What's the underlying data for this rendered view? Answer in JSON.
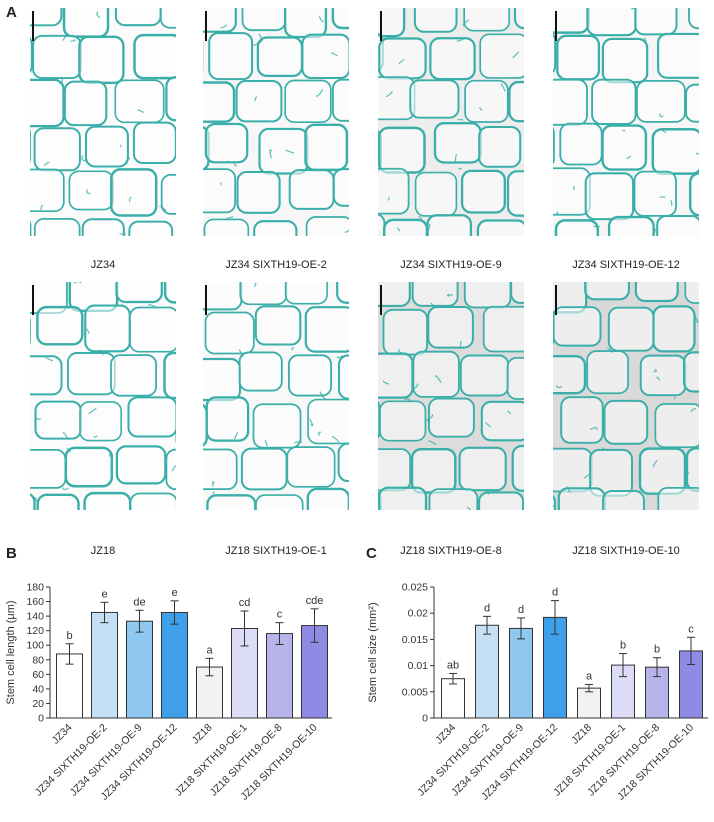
{
  "panels": {
    "a": "A",
    "b": "B",
    "c": "C"
  },
  "micrographs": [
    {
      "caption": "JZ34",
      "bg": "#fbfbfb"
    },
    {
      "caption": "JZ34 SIXTH19-OE-2",
      "bg": "#f7f7f7"
    },
    {
      "caption": "JZ34 SIXTH19-OE-9",
      "bg": "#ededed"
    },
    {
      "caption": "JZ34 SIXTH19-OE-12",
      "bg": "#f6f6f6"
    },
    {
      "caption": "JZ18",
      "bg": "#fbfbfb"
    },
    {
      "caption": "JZ18 SIXTH19-OE-1",
      "bg": "#f8f8f8"
    },
    {
      "caption": "JZ18 SIXTH19-OE-8",
      "bg": "#dcdcdc"
    },
    {
      "caption": "JZ18 SIXTH19-OE-10",
      "bg": "#d9d9d9"
    }
  ],
  "stain_color": "#3aaea8",
  "chart_data": [
    {
      "type": "bar",
      "ylabel": "Stem cell length (μm)",
      "ylim": [
        0,
        180
      ],
      "yticks": [
        0,
        20,
        40,
        60,
        80,
        100,
        120,
        140,
        160,
        180
      ],
      "categories": [
        "JZ34",
        "JZ34 SIXTH19-OE-2",
        "JZ34 SIXTH19-OE-9",
        "JZ34 SIXTH19-OE-12",
        "JZ18",
        "JZ18 SIXTH19-OE-1",
        "JZ18 SIXTH19-OE-8",
        "JZ18 SIXTH19-OE-10"
      ],
      "values": [
        88,
        145,
        133,
        145,
        70,
        123,
        116,
        127
      ],
      "errors": [
        14,
        14,
        15,
        16,
        12,
        24,
        15,
        23
      ],
      "letters": [
        "b",
        "e",
        "de",
        "e",
        "a",
        "cd",
        "c",
        "cde"
      ],
      "colors": [
        "#ffffff",
        "#c5dff4",
        "#8ec8ee",
        "#3da0e8",
        "#f2f2f2",
        "#dcdcf6",
        "#b7b4ec",
        "#8f8ae4"
      ]
    },
    {
      "type": "bar",
      "ylabel": "Stem cell size (mm²)",
      "ylim": [
        0,
        0.025
      ],
      "yticks": [
        "0",
        "0.005",
        "0.01",
        "0.015",
        "0.02",
        "0.025"
      ],
      "categories": [
        "JZ34",
        "JZ34 SIXTH19-OE-2",
        "JZ34 SIXTH19-OE-9",
        "JZ34 SIXTH19-OE-12",
        "JZ18",
        "JZ18 SIXTH19-OE-1",
        "JZ18 SIXTH19-OE-8",
        "JZ18 SIXTH19-OE-10"
      ],
      "values": [
        0.0075,
        0.0177,
        0.0171,
        0.0192,
        0.0057,
        0.0101,
        0.0097,
        0.0128
      ],
      "errors": [
        0.001,
        0.0017,
        0.002,
        0.0032,
        0.0007,
        0.0022,
        0.0018,
        0.0026
      ],
      "letters": [
        "ab",
        "d",
        "d",
        "d",
        "a",
        "b",
        "b",
        "c"
      ],
      "colors": [
        "#ffffff",
        "#c5dff4",
        "#8ec8ee",
        "#3da0e8",
        "#f2f2f2",
        "#dcdcf6",
        "#b7b4ec",
        "#8f8ae4"
      ]
    }
  ]
}
